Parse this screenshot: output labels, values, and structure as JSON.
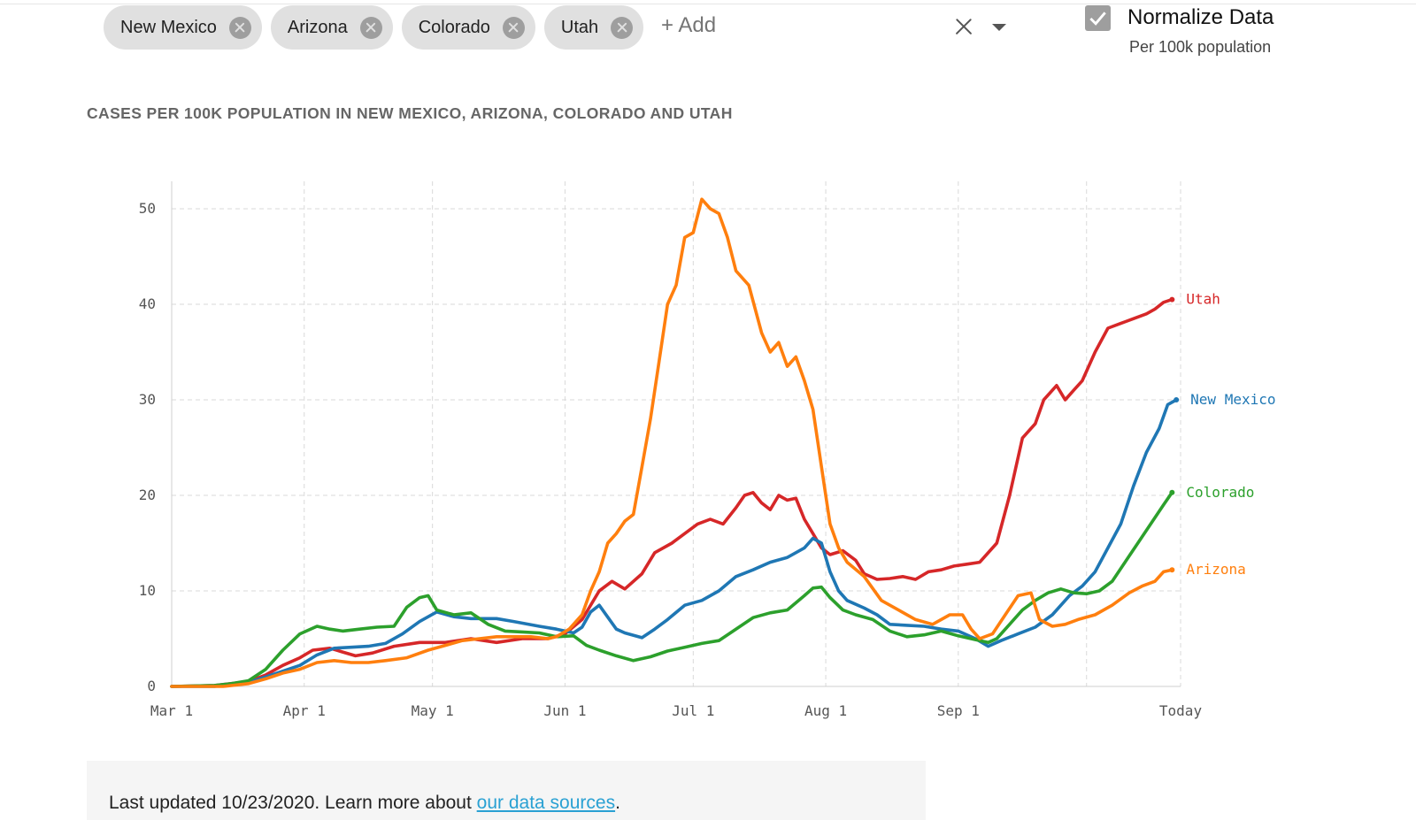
{
  "filters": {
    "chips": [
      {
        "label": "New Mexico"
      },
      {
        "label": "Arizona"
      },
      {
        "label": "Colorado"
      },
      {
        "label": "Utah"
      }
    ],
    "add_placeholder": "+ Add"
  },
  "normalize": {
    "label": "Normalize Data",
    "sublabel": "Per 100k population",
    "checked": true
  },
  "colors": {
    "chip_bg": "#e0e0e0",
    "grid": "#d9d9d9",
    "link": "#2aa1d3"
  },
  "chart_data": {
    "type": "line",
    "title": "CASES PER 100K POPULATION IN NEW MEXICO, ARIZONA, COLORADO AND UTAH",
    "xlabel": "",
    "ylabel": "",
    "x_unit": "days since Mar 1, 2020",
    "xlim": [
      0,
      236
    ],
    "ylim": [
      0,
      52
    ],
    "grid": true,
    "legend": "inline labels at line ends (right)",
    "x_ticks": [
      {
        "label": "Mar 1",
        "day": 0
      },
      {
        "label": "Apr 1",
        "day": 31
      },
      {
        "label": "May 1",
        "day": 61
      },
      {
        "label": "Jun 1",
        "day": 92
      },
      {
        "label": "Jul 1",
        "day": 122
      },
      {
        "label": "Aug 1",
        "day": 153
      },
      {
        "label": "Sep 1",
        "day": 184
      },
      {
        "label": "Today",
        "day": 236
      }
    ],
    "extra_gridlines_days": [
      214
    ],
    "y_ticks": [
      0,
      10,
      20,
      30,
      40,
      50
    ],
    "series": [
      {
        "name": "Utah",
        "color": "#d62728",
        "points": [
          [
            0,
            0
          ],
          [
            10,
            0.1
          ],
          [
            18,
            0.5
          ],
          [
            22,
            1.2
          ],
          [
            26,
            2.2
          ],
          [
            30,
            3
          ],
          [
            33,
            3.8
          ],
          [
            37,
            4
          ],
          [
            40,
            3.6
          ],
          [
            43,
            3.2
          ],
          [
            47,
            3.5
          ],
          [
            52,
            4.2
          ],
          [
            58,
            4.6
          ],
          [
            64,
            4.6
          ],
          [
            70,
            5
          ],
          [
            76,
            4.6
          ],
          [
            82,
            5
          ],
          [
            88,
            5
          ],
          [
            92,
            5.5
          ],
          [
            96,
            7
          ],
          [
            100,
            10
          ],
          [
            103,
            11
          ],
          [
            106,
            10.2
          ],
          [
            110,
            11.8
          ],
          [
            113,
            14
          ],
          [
            117,
            15
          ],
          [
            120,
            16
          ],
          [
            123,
            17
          ],
          [
            126,
            17.5
          ],
          [
            129,
            17
          ],
          [
            132,
            18.7
          ],
          [
            134,
            20
          ],
          [
            136,
            20.3
          ],
          [
            138,
            19.2
          ],
          [
            140,
            18.5
          ],
          [
            142,
            20
          ],
          [
            144,
            19.5
          ],
          [
            146,
            19.7
          ],
          [
            148,
            17.5
          ],
          [
            150,
            16
          ],
          [
            152,
            14.5
          ],
          [
            154,
            13.8
          ],
          [
            157,
            14.2
          ],
          [
            160,
            13.2
          ],
          [
            162,
            11.8
          ],
          [
            165,
            11.2
          ],
          [
            168,
            11.3
          ],
          [
            171,
            11.5
          ],
          [
            174,
            11.2
          ],
          [
            177,
            12
          ],
          [
            180,
            12.2
          ],
          [
            183,
            12.6
          ],
          [
            186,
            12.8
          ],
          [
            189,
            13
          ],
          [
            193,
            15
          ],
          [
            196,
            20
          ],
          [
            199,
            26
          ],
          [
            202,
            27.5
          ],
          [
            204,
            30
          ],
          [
            207,
            31.5
          ],
          [
            209,
            30
          ],
          [
            211,
            31
          ],
          [
            213,
            32
          ],
          [
            216,
            35
          ],
          [
            219,
            37.5
          ],
          [
            222,
            38
          ],
          [
            225,
            38.5
          ],
          [
            228,
            39
          ],
          [
            230,
            39.5
          ],
          [
            232,
            40.2
          ],
          [
            234,
            40.5
          ]
        ]
      },
      {
        "name": "New Mexico",
        "color": "#1f77b4",
        "points": [
          [
            0,
            0
          ],
          [
            10,
            0
          ],
          [
            18,
            0.4
          ],
          [
            22,
            1
          ],
          [
            26,
            1.6
          ],
          [
            30,
            2.2
          ],
          [
            34,
            3.3
          ],
          [
            38,
            4
          ],
          [
            42,
            4.1
          ],
          [
            46,
            4.2
          ],
          [
            50,
            4.5
          ],
          [
            54,
            5.5
          ],
          [
            58,
            6.8
          ],
          [
            62,
            7.8
          ],
          [
            66,
            7.3
          ],
          [
            70,
            7.1
          ],
          [
            76,
            7.1
          ],
          [
            80,
            6.8
          ],
          [
            86,
            6.3
          ],
          [
            90,
            6
          ],
          [
            94,
            5.6
          ],
          [
            96,
            6.2
          ],
          [
            98,
            7.8
          ],
          [
            100,
            8.5
          ],
          [
            104,
            6
          ],
          [
            106,
            5.6
          ],
          [
            110,
            5.1
          ],
          [
            113,
            6
          ],
          [
            116,
            7
          ],
          [
            120,
            8.5
          ],
          [
            124,
            9
          ],
          [
            128,
            10
          ],
          [
            132,
            11.5
          ],
          [
            136,
            12.2
          ],
          [
            140,
            13
          ],
          [
            144,
            13.5
          ],
          [
            148,
            14.5
          ],
          [
            150,
            15.5
          ],
          [
            152,
            15
          ],
          [
            154,
            12
          ],
          [
            156,
            10
          ],
          [
            158,
            9
          ],
          [
            162,
            8.2
          ],
          [
            165,
            7.5
          ],
          [
            168,
            6.5
          ],
          [
            172,
            6.4
          ],
          [
            176,
            6.3
          ],
          [
            180,
            6
          ],
          [
            184,
            5.8
          ],
          [
            188,
            5
          ],
          [
            191,
            4.2
          ],
          [
            194,
            4.8
          ],
          [
            198,
            5.5
          ],
          [
            202,
            6.2
          ],
          [
            206,
            7.5
          ],
          [
            210,
            9.5
          ],
          [
            213,
            10.5
          ],
          [
            216,
            12
          ],
          [
            219,
            14.5
          ],
          [
            222,
            17
          ],
          [
            225,
            21
          ],
          [
            228,
            24.5
          ],
          [
            231,
            27
          ],
          [
            233,
            29.5
          ],
          [
            235,
            30
          ]
        ]
      },
      {
        "name": "Colorado",
        "color": "#2ca02c",
        "points": [
          [
            0,
            0
          ],
          [
            10,
            0.1
          ],
          [
            14,
            0.3
          ],
          [
            18,
            0.6
          ],
          [
            22,
            1.8
          ],
          [
            26,
            3.8
          ],
          [
            30,
            5.5
          ],
          [
            34,
            6.3
          ],
          [
            37,
            6
          ],
          [
            40,
            5.8
          ],
          [
            44,
            6
          ],
          [
            48,
            6.2
          ],
          [
            52,
            6.3
          ],
          [
            55,
            8.3
          ],
          [
            58,
            9.3
          ],
          [
            60,
            9.5
          ],
          [
            62,
            8
          ],
          [
            66,
            7.5
          ],
          [
            70,
            7.7
          ],
          [
            74,
            6.5
          ],
          [
            78,
            5.8
          ],
          [
            82,
            5.7
          ],
          [
            86,
            5.6
          ],
          [
            90,
            5.2
          ],
          [
            94,
            5.3
          ],
          [
            97,
            4.3
          ],
          [
            100,
            3.8
          ],
          [
            104,
            3.2
          ],
          [
            108,
            2.7
          ],
          [
            112,
            3.1
          ],
          [
            116,
            3.7
          ],
          [
            120,
            4.1
          ],
          [
            124,
            4.5
          ],
          [
            128,
            4.8
          ],
          [
            132,
            6
          ],
          [
            136,
            7.2
          ],
          [
            140,
            7.7
          ],
          [
            144,
            8
          ],
          [
            148,
            9.5
          ],
          [
            150,
            10.3
          ],
          [
            152,
            10.4
          ],
          [
            154,
            9.3
          ],
          [
            157,
            8
          ],
          [
            160,
            7.5
          ],
          [
            164,
            7
          ],
          [
            168,
            5.8
          ],
          [
            172,
            5.2
          ],
          [
            176,
            5.4
          ],
          [
            180,
            5.8
          ],
          [
            184,
            5.3
          ],
          [
            188,
            4.9
          ],
          [
            191,
            4.6
          ],
          [
            193,
            5
          ],
          [
            196,
            6.5
          ],
          [
            199,
            8
          ],
          [
            202,
            9
          ],
          [
            205,
            9.8
          ],
          [
            208,
            10.2
          ],
          [
            211,
            9.8
          ],
          [
            214,
            9.7
          ],
          [
            217,
            10
          ],
          [
            220,
            11
          ],
          [
            223,
            13
          ],
          [
            226,
            15
          ],
          [
            229,
            17
          ],
          [
            232,
            19
          ],
          [
            234,
            20.3
          ]
        ]
      },
      {
        "name": "Arizona",
        "color": "#ff7f0e",
        "points": [
          [
            0,
            0
          ],
          [
            12,
            0
          ],
          [
            18,
            0.3
          ],
          [
            22,
            0.8
          ],
          [
            26,
            1.4
          ],
          [
            30,
            1.8
          ],
          [
            34,
            2.5
          ],
          [
            38,
            2.7
          ],
          [
            42,
            2.5
          ],
          [
            46,
            2.5
          ],
          [
            50,
            2.7
          ],
          [
            55,
            3
          ],
          [
            60,
            3.8
          ],
          [
            64,
            4.3
          ],
          [
            68,
            4.8
          ],
          [
            72,
            5
          ],
          [
            76,
            5.2
          ],
          [
            80,
            5.2
          ],
          [
            84,
            5.2
          ],
          [
            88,
            5
          ],
          [
            90,
            5.2
          ],
          [
            93,
            6
          ],
          [
            96,
            7.5
          ],
          [
            98,
            10
          ],
          [
            100,
            12
          ],
          [
            102,
            15
          ],
          [
            104,
            16
          ],
          [
            106,
            17.3
          ],
          [
            108,
            18
          ],
          [
            110,
            23
          ],
          [
            112,
            28
          ],
          [
            114,
            34
          ],
          [
            116,
            40
          ],
          [
            118,
            42
          ],
          [
            120,
            47
          ],
          [
            122,
            47.5
          ],
          [
            124,
            51
          ],
          [
            126,
            50
          ],
          [
            128,
            49.5
          ],
          [
            130,
            47
          ],
          [
            132,
            43.5
          ],
          [
            135,
            42
          ],
          [
            138,
            37
          ],
          [
            140,
            35
          ],
          [
            142,
            36
          ],
          [
            144,
            33.5
          ],
          [
            146,
            34.5
          ],
          [
            148,
            32
          ],
          [
            150,
            29
          ],
          [
            152,
            23
          ],
          [
            154,
            17
          ],
          [
            156,
            14.5
          ],
          [
            158,
            13
          ],
          [
            162,
            11.5
          ],
          [
            166,
            9
          ],
          [
            170,
            8
          ],
          [
            174,
            7
          ],
          [
            178,
            6.5
          ],
          [
            182,
            7.5
          ],
          [
            185,
            7.5
          ],
          [
            187,
            6
          ],
          [
            189,
            5
          ],
          [
            192,
            5.5
          ],
          [
            195,
            7.5
          ],
          [
            198,
            9.5
          ],
          [
            201,
            9.8
          ],
          [
            203,
            7
          ],
          [
            206,
            6.3
          ],
          [
            209,
            6.5
          ],
          [
            212,
            7
          ],
          [
            216,
            7.5
          ],
          [
            220,
            8.5
          ],
          [
            224,
            9.8
          ],
          [
            227,
            10.5
          ],
          [
            230,
            11
          ],
          [
            232,
            12
          ],
          [
            234,
            12.2
          ]
        ]
      }
    ]
  },
  "footer": {
    "prefix": "Last updated 10/23/2020. Learn more about ",
    "link_text": "our data sources",
    "suffix": "."
  }
}
